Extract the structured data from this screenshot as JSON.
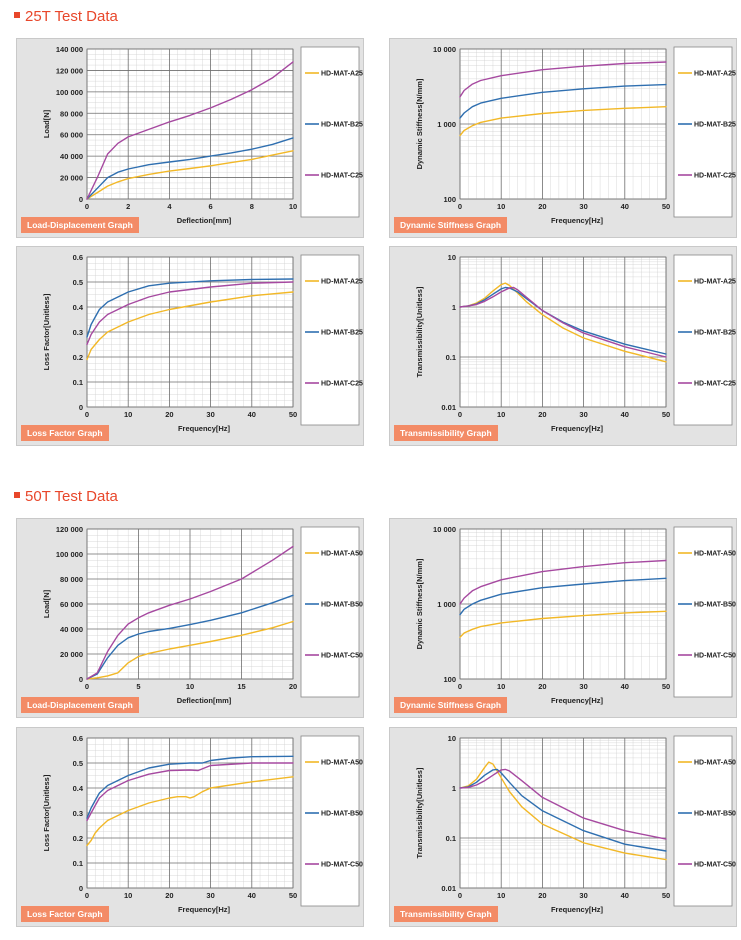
{
  "sections": [
    {
      "title": "25T Test Data"
    },
    {
      "title": "50T Test Data"
    }
  ],
  "colors": {
    "heading": "#e8472b",
    "tag_bg": "#f38b66",
    "series_a": "#f2b827",
    "series_b": "#2f6fb0",
    "series_c": "#a649a0",
    "panel_bg": "#e3e3e3"
  },
  "chart_data": [
    {
      "id": "c25-load",
      "type": "line",
      "section": 0,
      "tag": "Load-Displacement Graph",
      "xlabel": "Deflection[mm]",
      "ylabel": "Load[N]",
      "xlim": [
        0,
        10
      ],
      "ylim": [
        0,
        140000
      ],
      "xticks": [
        0,
        2,
        4,
        6,
        8,
        10
      ],
      "yticks": [
        0,
        20000,
        40000,
        60000,
        80000,
        100000,
        120000,
        140000
      ],
      "ytick_labels": [
        "0",
        "20 000",
        "40 000",
        "60 000",
        "80 000",
        "100 000",
        "120 000",
        "140 000"
      ],
      "grid": true,
      "legend": "right",
      "series": [
        {
          "name": "HD-MAT-A25",
          "x": [
            0,
            0.5,
            1,
            1.5,
            2,
            3,
            4,
            5,
            6,
            7,
            8,
            9,
            10
          ],
          "y": [
            0,
            6000,
            12000,
            16000,
            19000,
            23000,
            26000,
            28500,
            31000,
            34000,
            37000,
            41000,
            45000
          ]
        },
        {
          "name": "HD-MAT-B25",
          "x": [
            0,
            0.5,
            1,
            1.5,
            2,
            3,
            4,
            5,
            6,
            7,
            8,
            9,
            10
          ],
          "y": [
            0,
            10000,
            20000,
            25000,
            28000,
            32000,
            34500,
            37000,
            40000,
            43000,
            46500,
            51000,
            57000
          ]
        },
        {
          "name": "HD-MAT-C25",
          "x": [
            0,
            0.5,
            1,
            1.5,
            2,
            3,
            4,
            5,
            6,
            7,
            8,
            9,
            10
          ],
          "y": [
            0,
            20000,
            42000,
            52000,
            58000,
            65000,
            72000,
            78000,
            85000,
            93000,
            102000,
            113000,
            128000
          ]
        }
      ]
    },
    {
      "id": "c25-stiff",
      "type": "line",
      "section": 0,
      "tag": "Dynamic Stiffness Graph",
      "xlabel": "Frequency[Hz]",
      "ylabel": "Dynamic Stiffness[N/mm]",
      "xlim": [
        0,
        50
      ],
      "ylim": [
        100,
        10000
      ],
      "yscale": "log",
      "xticks": [
        0,
        10,
        20,
        30,
        40,
        50
      ],
      "yticks": [
        100,
        1000,
        10000
      ],
      "ytick_labels": [
        "100",
        "1 000",
        "10 000"
      ],
      "grid": true,
      "legend": "right",
      "series": [
        {
          "name": "HD-MAT-A25",
          "x": [
            0,
            1,
            3,
            5,
            10,
            20,
            30,
            40,
            50
          ],
          "y": [
            700,
            820,
            950,
            1050,
            1200,
            1380,
            1520,
            1620,
            1700
          ]
        },
        {
          "name": "HD-MAT-B25",
          "x": [
            0,
            1,
            3,
            5,
            10,
            20,
            30,
            40,
            50
          ],
          "y": [
            1200,
            1400,
            1700,
            1900,
            2200,
            2650,
            2950,
            3200,
            3350
          ]
        },
        {
          "name": "HD-MAT-C25",
          "x": [
            0,
            1,
            3,
            5,
            10,
            20,
            30,
            40,
            50
          ],
          "y": [
            2300,
            2800,
            3400,
            3800,
            4400,
            5300,
            5900,
            6400,
            6700
          ]
        }
      ]
    },
    {
      "id": "c25-loss",
      "type": "line",
      "section": 0,
      "tag": "Loss Factor Graph",
      "xlabel": "Frequency[Hz]",
      "ylabel": "Loss Factor[Unitless]",
      "xlim": [
        0,
        50
      ],
      "ylim": [
        0,
        0.6
      ],
      "xticks": [
        0,
        10,
        20,
        30,
        40,
        50
      ],
      "yticks": [
        0,
        0.1,
        0.2,
        0.3,
        0.4,
        0.5,
        0.6
      ],
      "ytick_labels": [
        "0",
        "0.1",
        "0.2",
        "0.3",
        "0.4",
        "0.5",
        "0.6"
      ],
      "grid": true,
      "legend": "right",
      "series": [
        {
          "name": "HD-MAT-A25",
          "x": [
            0,
            1,
            3,
            5,
            10,
            15,
            20,
            30,
            40,
            50
          ],
          "y": [
            0.19,
            0.23,
            0.27,
            0.3,
            0.34,
            0.37,
            0.39,
            0.42,
            0.445,
            0.46
          ]
        },
        {
          "name": "HD-MAT-B25",
          "x": [
            0,
            1,
            3,
            5,
            10,
            15,
            20,
            30,
            40,
            50
          ],
          "y": [
            0.28,
            0.33,
            0.39,
            0.42,
            0.46,
            0.485,
            0.495,
            0.505,
            0.51,
            0.512
          ]
        },
        {
          "name": "HD-MAT-C25",
          "x": [
            0,
            1,
            3,
            5,
            10,
            15,
            20,
            30,
            40,
            50
          ],
          "y": [
            0.25,
            0.29,
            0.34,
            0.37,
            0.41,
            0.44,
            0.46,
            0.48,
            0.495,
            0.5
          ]
        }
      ]
    },
    {
      "id": "c25-trans",
      "type": "line",
      "section": 0,
      "tag": "Transmissibility Graph",
      "xlabel": "Frequency[Hz]",
      "ylabel": "Transmissibility[Unitless]",
      "xlim": [
        0,
        50
      ],
      "ylim": [
        0.01,
        10
      ],
      "yscale": "log",
      "xticks": [
        0,
        10,
        20,
        30,
        40,
        50
      ],
      "yticks": [
        0.01,
        0.1,
        1,
        10
      ],
      "ytick_labels": [
        "0.01",
        "0.1",
        "1",
        "10"
      ],
      "grid": true,
      "legend": "right",
      "series": [
        {
          "name": "HD-MAT-A25",
          "x": [
            0,
            2,
            4,
            6,
            8,
            10,
            11,
            12,
            14,
            16,
            20,
            25,
            30,
            40,
            50
          ],
          "y": [
            1,
            1.05,
            1.2,
            1.5,
            2.1,
            2.8,
            3,
            2.7,
            1.9,
            1.3,
            0.7,
            0.38,
            0.24,
            0.13,
            0.08
          ]
        },
        {
          "name": "HD-MAT-B25",
          "x": [
            0,
            2,
            4,
            6,
            8,
            10,
            11,
            12,
            14,
            16,
            20,
            25,
            30,
            40,
            50
          ],
          "y": [
            1,
            1.05,
            1.15,
            1.4,
            1.8,
            2.3,
            2.45,
            2.4,
            2.0,
            1.5,
            0.85,
            0.5,
            0.33,
            0.18,
            0.115
          ]
        },
        {
          "name": "HD-MAT-C25",
          "x": [
            0,
            2,
            4,
            6,
            8,
            10,
            12,
            13,
            14,
            16,
            20,
            25,
            30,
            40,
            50
          ],
          "y": [
            1,
            1.05,
            1.12,
            1.3,
            1.6,
            2.0,
            2.4,
            2.45,
            2.2,
            1.6,
            0.85,
            0.48,
            0.3,
            0.16,
            0.1
          ]
        }
      ]
    },
    {
      "id": "c50-load",
      "type": "line",
      "section": 1,
      "tag": "Load-Displacement Graph",
      "xlabel": "Deflection[mm]",
      "ylabel": "Load[N]",
      "xlim": [
        0,
        20
      ],
      "ylim": [
        0,
        120000
      ],
      "xticks": [
        0,
        5,
        10,
        15,
        20
      ],
      "yticks": [
        0,
        20000,
        40000,
        60000,
        80000,
        100000,
        120000
      ],
      "ytick_labels": [
        "0",
        "20 000",
        "40 000",
        "60 000",
        "80 000",
        "100 000",
        "120 000"
      ],
      "grid": true,
      "legend": "right",
      "series": [
        {
          "name": "HD-MAT-A50",
          "x": [
            0,
            1,
            2,
            3,
            4,
            5,
            6,
            8,
            10,
            12,
            15,
            18,
            20
          ],
          "y": [
            0,
            1000,
            2500,
            5000,
            13000,
            18000,
            20500,
            24000,
            27000,
            30000,
            35000,
            41000,
            46000
          ]
        },
        {
          "name": "HD-MAT-B50",
          "x": [
            0,
            1,
            2,
            3,
            4,
            5,
            6,
            8,
            10,
            12,
            15,
            18,
            20
          ],
          "y": [
            0,
            4000,
            17000,
            27000,
            33000,
            36000,
            38000,
            40500,
            43500,
            47000,
            53000,
            61000,
            67000
          ]
        },
        {
          "name": "HD-MAT-C50",
          "x": [
            0,
            1,
            2,
            3,
            4,
            5,
            6,
            8,
            10,
            12,
            15,
            18,
            20
          ],
          "y": [
            0,
            5000,
            22000,
            35000,
            44000,
            49000,
            53000,
            59000,
            64000,
            70000,
            80000,
            95000,
            106000
          ]
        }
      ]
    },
    {
      "id": "c50-stiff",
      "type": "line",
      "section": 1,
      "tag": "Dynamic Stiffness Graph",
      "xlabel": "Frequency[Hz]",
      "ylabel": "Dynamic Stiffness[N/mm]",
      "xlim": [
        0,
        50
      ],
      "ylim": [
        100,
        10000
      ],
      "yscale": "log",
      "xticks": [
        0,
        10,
        20,
        30,
        40,
        50
      ],
      "yticks": [
        100,
        1000,
        10000
      ],
      "ytick_labels": [
        "100",
        "1 000",
        "10 000"
      ],
      "grid": true,
      "legend": "right",
      "series": [
        {
          "name": "HD-MAT-A50",
          "x": [
            0,
            1,
            3,
            5,
            10,
            20,
            30,
            40,
            50
          ],
          "y": [
            360,
            410,
            460,
            500,
            560,
            640,
            700,
            760,
            800
          ]
        },
        {
          "name": "HD-MAT-B50",
          "x": [
            0,
            1,
            3,
            5,
            10,
            20,
            30,
            40,
            50
          ],
          "y": [
            720,
            850,
            1000,
            1120,
            1350,
            1650,
            1850,
            2050,
            2200
          ]
        },
        {
          "name": "HD-MAT-C50",
          "x": [
            0,
            1,
            3,
            5,
            10,
            20,
            30,
            40,
            50
          ],
          "y": [
            1000,
            1200,
            1500,
            1700,
            2100,
            2700,
            3150,
            3550,
            3800
          ]
        }
      ]
    },
    {
      "id": "c50-loss",
      "type": "line",
      "section": 1,
      "tag": "Loss Factor Graph",
      "xlabel": "Frequency[Hz]",
      "ylabel": "Loss Factor[Unitless]",
      "xlim": [
        0,
        50
      ],
      "ylim": [
        0,
        0.6
      ],
      "xticks": [
        0,
        10,
        20,
        30,
        40,
        50
      ],
      "yticks": [
        0,
        0.1,
        0.2,
        0.3,
        0.4,
        0.5,
        0.6
      ],
      "ytick_labels": [
        "0",
        "0.1",
        "0.2",
        "0.3",
        "0.4",
        "0.5",
        "0.6"
      ],
      "grid": true,
      "legend": "right",
      "series": [
        {
          "name": "HD-MAT-A50",
          "x": [
            0,
            1,
            2,
            3,
            5,
            10,
            15,
            20,
            22,
            24,
            25,
            26,
            28,
            30,
            40,
            50
          ],
          "y": [
            0.17,
            0.19,
            0.22,
            0.24,
            0.27,
            0.31,
            0.34,
            0.36,
            0.365,
            0.365,
            0.36,
            0.365,
            0.385,
            0.4,
            0.425,
            0.445
          ]
        },
        {
          "name": "HD-MAT-B50",
          "x": [
            0,
            1,
            2,
            3,
            5,
            10,
            15,
            20,
            25,
            28,
            30,
            35,
            40,
            50
          ],
          "y": [
            0.28,
            0.32,
            0.35,
            0.38,
            0.41,
            0.45,
            0.48,
            0.495,
            0.5,
            0.5,
            0.51,
            0.52,
            0.525,
            0.527
          ]
        },
        {
          "name": "HD-MAT-C50",
          "x": [
            0,
            1,
            2,
            3,
            5,
            10,
            15,
            20,
            25,
            27,
            30,
            40,
            50
          ],
          "y": [
            0.27,
            0.3,
            0.33,
            0.36,
            0.39,
            0.43,
            0.455,
            0.47,
            0.472,
            0.47,
            0.49,
            0.5,
            0.5
          ]
        }
      ]
    },
    {
      "id": "c50-trans",
      "type": "line",
      "section": 1,
      "tag": "Transmissibility Graph",
      "xlabel": "Frequency[Hz]",
      "ylabel": "Transmissibility[Unitless]",
      "xlim": [
        0,
        50
      ],
      "ylim": [
        0.01,
        10
      ],
      "yscale": "log",
      "xticks": [
        0,
        10,
        20,
        30,
        40,
        50
      ],
      "yticks": [
        0.01,
        0.1,
        1,
        10
      ],
      "ytick_labels": [
        "0.01",
        "0.1",
        "1",
        "10"
      ],
      "grid": true,
      "legend": "right",
      "series": [
        {
          "name": "HD-MAT-A50",
          "x": [
            0,
            2,
            4,
            6,
            7,
            8,
            10,
            12,
            15,
            20,
            30,
            40,
            50
          ],
          "y": [
            1,
            1.1,
            1.5,
            2.6,
            3.3,
            3.0,
            1.6,
            0.85,
            0.42,
            0.19,
            0.08,
            0.05,
            0.037
          ]
        },
        {
          "name": "HD-MAT-B50",
          "x": [
            0,
            2,
            4,
            6,
            8,
            9,
            10,
            12,
            15,
            20,
            30,
            40,
            50
          ],
          "y": [
            1,
            1.05,
            1.3,
            1.8,
            2.3,
            2.35,
            2.0,
            1.3,
            0.7,
            0.35,
            0.14,
            0.075,
            0.055
          ]
        },
        {
          "name": "HD-MAT-C50",
          "x": [
            0,
            2,
            4,
            6,
            8,
            10,
            11,
            12,
            15,
            20,
            30,
            40,
            50
          ],
          "y": [
            1,
            1.03,
            1.15,
            1.4,
            1.8,
            2.3,
            2.35,
            2.2,
            1.4,
            0.65,
            0.25,
            0.14,
            0.095
          ]
        }
      ]
    }
  ]
}
